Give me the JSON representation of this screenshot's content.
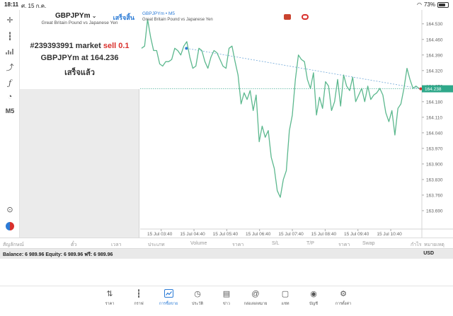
{
  "status_bar": {
    "time": "18:11",
    "date": "ศ. 15 ก.ค.",
    "battery": "73%",
    "battery_level": 0.73
  },
  "left_toolbar": {
    "timeframe": "M5"
  },
  "order_panel": {
    "symbol": "GBPJPYm",
    "done_label": "เสร็จสิ้น",
    "description": "Great Britain Pound vs Japanese Yen",
    "msg_line1_prefix": "#239393991 market ",
    "msg_line1_action": "sell 0.1",
    "msg_line2_prefix": "GBPJPYm at ",
    "msg_line2_price": "164.236",
    "msg_line3": "เสร็จแล้ว"
  },
  "chart": {
    "title": "GBPJPYm • M5",
    "subtitle": "Great Britain Pound vs Japanese Yen",
    "current_price_label": "164.238",
    "colors": {
      "line": "#5cb88e",
      "trend": "#6fa7d8",
      "price_line": "#4fb09a",
      "price_tag": "#2fa88a"
    }
  },
  "chart_data": {
    "type": "line",
    "ylim": [
      163.62,
      164.58
    ],
    "y_ticks": [
      "164.530",
      "164.460",
      "164.390",
      "164.320",
      "164.250",
      "164.180",
      "164.110",
      "164.040",
      "163.970",
      "163.900",
      "163.830",
      "163.760",
      "163.690"
    ],
    "y_tick_values": [
      164.53,
      164.46,
      164.39,
      164.32,
      164.25,
      164.18,
      164.11,
      164.04,
      163.97,
      163.9,
      163.83,
      163.76,
      163.69
    ],
    "x_ticks": [
      "15 Jul 03:40",
      "15 Jul 04:40",
      "15 Jul 05:40",
      "15 Jul 06:40",
      "15 Jul 07:40",
      "15 Jul 08:40",
      "15 Jul 09:40",
      "15 Jul 10:40"
    ],
    "series": [
      {
        "values": [
          164.42,
          164.43,
          164.55,
          164.47,
          164.41,
          164.41,
          164.35,
          164.34,
          164.36,
          164.36,
          164.37,
          164.42,
          164.41,
          164.39,
          164.43,
          164.45,
          164.38,
          164.33,
          164.34,
          164.42,
          164.41,
          164.36,
          164.33,
          164.38,
          164.41,
          164.4,
          164.37,
          164.34,
          164.33,
          164.42,
          164.43,
          164.36,
          164.3,
          164.17,
          164.22,
          164.19,
          164.23,
          164.14,
          164.21,
          164.0,
          164.07,
          164.02,
          164.05,
          163.93,
          163.88,
          163.78,
          163.75,
          163.83,
          163.87,
          164.05,
          164.12,
          164.28,
          164.39,
          164.37,
          164.36,
          164.28,
          164.24,
          164.31,
          164.12,
          164.2,
          164.15,
          164.27,
          164.25,
          164.14,
          164.18,
          164.28,
          164.16,
          164.3,
          164.25,
          164.23,
          164.29,
          164.18,
          164.21,
          164.24,
          164.18,
          164.25,
          164.19,
          164.21,
          164.22,
          164.24,
          164.21,
          164.13,
          164.09,
          164.14,
          164.03,
          164.15,
          164.17,
          164.24,
          164.33,
          164.28,
          164.24,
          164.25,
          164.24
        ]
      }
    ],
    "trendline": {
      "from": [
        0.16,
        164.42
      ],
      "to": [
        0.996,
        164.238
      ]
    },
    "current_price": 164.238
  },
  "positions_header": [
    "สัญลักษณ์",
    "ตั๋ว",
    "เวลา",
    "ประเภท",
    "Volume",
    "ราคา",
    "S/L",
    "T/P",
    "ราคา",
    "Swap",
    "กำไร",
    "หมายเหตุ"
  ],
  "balance_bar": {
    "text": "Balance: 6 989.96 Equity: 6 989.96 ฟรี: 6 989.96",
    "currency": "USD"
  },
  "tabs": [
    {
      "label": "ราคา",
      "icon": "updown-arrows-icon",
      "glyph": "⇅",
      "active": false
    },
    {
      "label": "กราฟ",
      "icon": "candles-icon",
      "glyph": "┇",
      "active": false
    },
    {
      "label": "การซื้อขาย",
      "icon": "trade-chart-icon",
      "glyph": "📈",
      "active": true
    },
    {
      "label": "ประวัติ",
      "icon": "history-clock-icon",
      "glyph": "◷",
      "active": false
    },
    {
      "label": "ข่าว",
      "icon": "news-book-icon",
      "glyph": "▤",
      "active": false
    },
    {
      "label": "กล่องจดหมาย",
      "icon": "mail-at-icon",
      "glyph": "@",
      "active": false
    },
    {
      "label": "แชท",
      "icon": "chat-bubble-icon",
      "glyph": "▢",
      "active": false
    },
    {
      "label": "บัญชี",
      "icon": "account-person-icon",
      "glyph": "◉",
      "active": false
    },
    {
      "label": "การตั้งค่า",
      "icon": "settings-gear-icon",
      "glyph": "⚙",
      "active": false
    }
  ]
}
